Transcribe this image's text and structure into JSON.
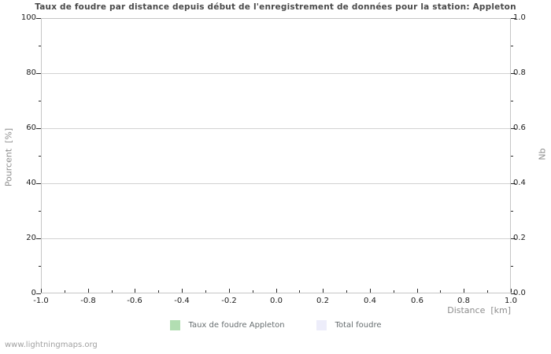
{
  "title": "Taux de foudre par distance depuis début de l'enregistrement de données pour la station: Appleton",
  "watermark": "www.lightningmaps.org",
  "legend": {
    "items": [
      {
        "label": "Taux de foudre Appleton",
        "color": "#b2deb2"
      },
      {
        "label": "Total foudre",
        "color": "#ededfa"
      }
    ]
  },
  "colors": {
    "title": "#4a4a4a",
    "axis_border": "#c6c6c6",
    "gridline": "#d2d2d2",
    "tick": "#2a2a2a",
    "tick_label": "#1c1c1c",
    "axis_label": "#8d8d8d",
    "legend_text": "#666d6f",
    "watermark": "#a0a0a0",
    "series_taux": "#b2deb2",
    "series_total": "#ededfa"
  },
  "chart_data": {
    "type": "line",
    "title": "Taux de foudre par distance depuis début de l'enregistrement de données pour la station: Appleton",
    "x_axis": {
      "label": "Distance  [km]",
      "min": -1.0,
      "max": 1.0,
      "major_step": 0.2,
      "minor_step": 0.1,
      "tick_labels": [
        "-1.0",
        "-0.8",
        "-0.6",
        "-0.4",
        "-0.2",
        "0.0",
        "0.2",
        "0.4",
        "0.6",
        "0.8",
        "1.0"
      ]
    },
    "y_axis_left": {
      "label": "Pourcent  [%]",
      "min": 0,
      "max": 100,
      "major_step": 20,
      "minor_step": 10,
      "tick_labels": [
        "0",
        "20",
        "40",
        "60",
        "80",
        "100"
      ]
    },
    "y_axis_right": {
      "label": "Nb",
      "min": 0.0,
      "max": 1.0,
      "major_step": 0.2,
      "minor_step": 0.1,
      "tick_labels": [
        "0.0",
        "0.2",
        "0.4",
        "0.6",
        "0.8",
        "1.0"
      ]
    },
    "grid": "horizontal-major-only",
    "legend_position": "bottom-center",
    "series": [
      {
        "name": "Taux de foudre Appleton",
        "color": "#b2deb2",
        "axis": "left",
        "x": [],
        "values": []
      },
      {
        "name": "Total foudre",
        "color": "#ededfa",
        "axis": "right",
        "x": [],
        "values": []
      }
    ],
    "note": "Chart area is empty - no data points plotted for this station"
  }
}
